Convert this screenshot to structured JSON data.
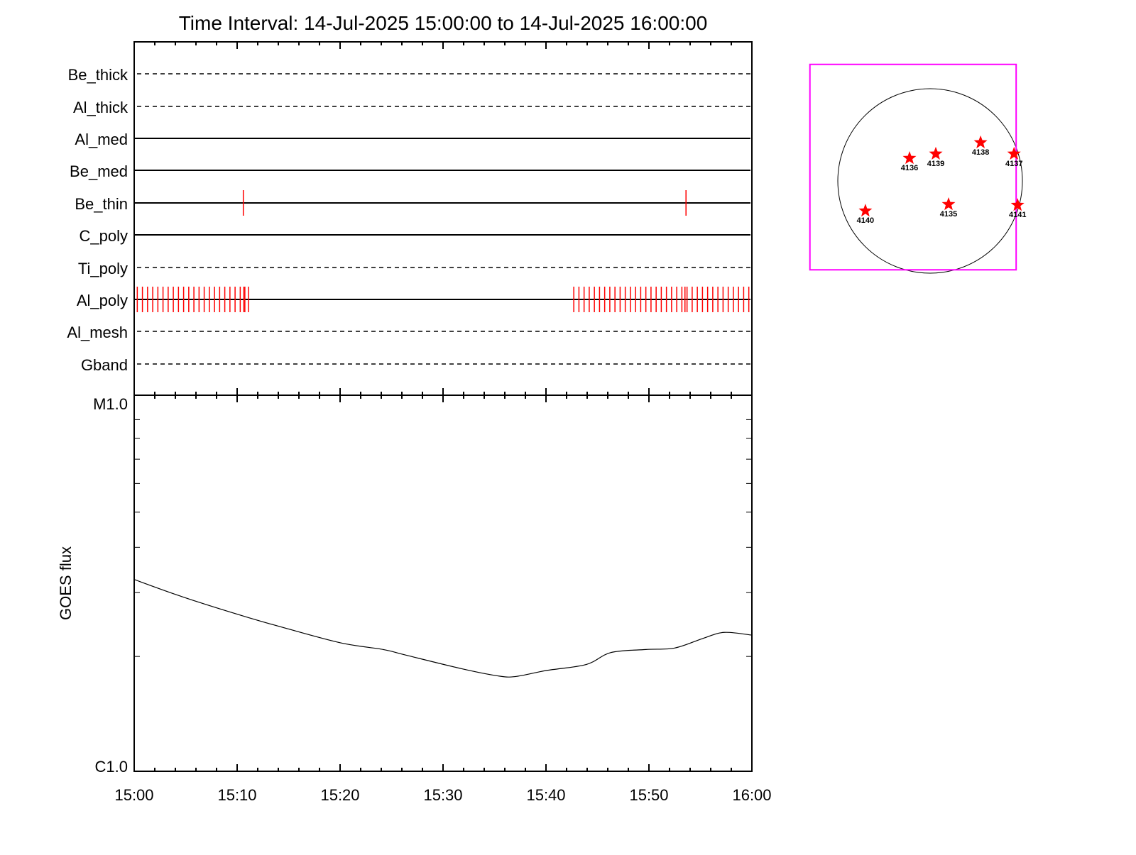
{
  "chart_data": [
    {
      "type": "table",
      "title": "Time Interval: 14-Jul-2025 15:00:00 to 14-Jul-2025 16:00:00",
      "description_kind": "filter timeline",
      "x_unit": "minutes after 15:00",
      "xlim": [
        0,
        60
      ],
      "x_tick_labels": [
        "15:00",
        "15:10",
        "15:20",
        "15:30",
        "15:40",
        "15:50",
        "16:00"
      ],
      "x_tick_values": [
        0,
        10,
        20,
        30,
        40,
        50,
        60
      ],
      "colors": {
        "event": "#ff0000",
        "axis": "#000000"
      },
      "channels": [
        {
          "name": "Be_thick",
          "style": "dashed",
          "events": []
        },
        {
          "name": "Al_thick",
          "style": "dashed",
          "events": []
        },
        {
          "name": "Al_med",
          "style": "solid",
          "events": []
        },
        {
          "name": "Be_med",
          "style": "solid",
          "events": []
        },
        {
          "name": "Be_thin",
          "style": "solid",
          "events": [
            10.6,
            53.6
          ]
        },
        {
          "name": "C_poly",
          "style": "solid",
          "events": []
        },
        {
          "name": "Ti_poly",
          "style": "dashed",
          "events": []
        },
        {
          "name": "Al_poly",
          "style": "solid",
          "events": [
            0.3,
            0.8,
            1.3,
            1.8,
            2.3,
            2.8,
            3.3,
            3.8,
            4.3,
            4.8,
            5.3,
            5.8,
            6.3,
            6.8,
            7.3,
            7.8,
            8.3,
            8.8,
            9.3,
            9.8,
            10.3,
            10.65,
            10.75,
            11.1,
            42.7,
            43.2,
            43.7,
            44.2,
            44.7,
            45.2,
            45.7,
            46.2,
            46.7,
            47.2,
            47.7,
            48.2,
            48.7,
            49.2,
            49.7,
            50.2,
            50.7,
            51.2,
            51.7,
            52.2,
            52.7,
            53.2,
            53.5,
            53.7,
            54.2,
            54.7,
            55.2,
            55.7,
            56.2,
            56.7,
            57.2,
            57.7,
            58.2,
            58.7,
            59.2,
            59.7
          ]
        },
        {
          "name": "Al_mesh",
          "style": "dashed",
          "events": []
        },
        {
          "name": "Gband",
          "style": "dashed",
          "events": []
        }
      ]
    },
    {
      "type": "line",
      "ylabel": "GOES flux",
      "yscale": "log",
      "ylim": [
        1e-06,
        1e-05
      ],
      "y_tick_labels": [
        "C1.0",
        "M1.0"
      ],
      "y_tick_values": [
        1e-06,
        1e-05
      ],
      "xlim": [
        0,
        60
      ],
      "x_tick_labels": [
        "15:00",
        "15:10",
        "15:20",
        "15:30",
        "15:40",
        "15:50",
        "16:00"
      ],
      "x_tick_values": [
        0,
        10,
        20,
        30,
        40,
        50,
        60
      ],
      "series": [
        {
          "name": "GOES flux",
          "x": [
            0,
            3.5,
            7.0,
            11.1,
            14.55,
            20.07,
            24.2,
            26.3,
            31.8,
            35.2,
            37.0,
            40.07,
            43.9,
            46.3,
            49.7,
            52.5,
            55.2,
            57.3,
            60
          ],
          "y": [
            3.26e-06,
            3e-06,
            2.78e-06,
            2.56e-06,
            2.4e-06,
            2.18e-06,
            2.09e-06,
            2.02e-06,
            1.85e-06,
            1.77e-06,
            1.76e-06,
            1.83e-06,
            1.9e-06,
            2.05e-06,
            2.09e-06,
            2.11e-06,
            2.24e-06,
            2.33e-06,
            2.29e-06
          ]
        }
      ]
    },
    {
      "type": "scatter",
      "description_kind": "solar disk map (arcsec)",
      "solar_radius": 960,
      "fov": {
        "xlim": [
          -1250,
          895
        ],
        "ylim": [
          -925,
          1213
        ],
        "color": "#ff00ff"
      },
      "regions": [
        {
          "label": "4136",
          "x": -214,
          "y": 229
        },
        {
          "label": "4139",
          "x": 59,
          "y": 274
        },
        {
          "label": "4138",
          "x": 525,
          "y": 392
        },
        {
          "label": "4137",
          "x": 873,
          "y": 274
        },
        {
          "label": "4140",
          "x": -673,
          "y": -318
        },
        {
          "label": "4135",
          "x": 192,
          "y": -251
        },
        {
          "label": "4141",
          "x": 910,
          "y": -259
        }
      ],
      "marker_color": "#ff0000"
    }
  ]
}
